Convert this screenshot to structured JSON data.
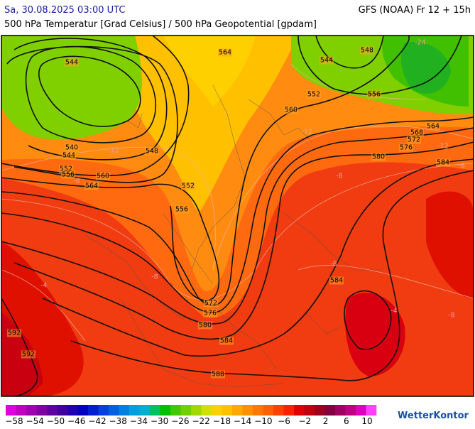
{
  "header": {
    "datetime": "Sa, 30.08.2025 03:00 UTC",
    "model": "GFS (NOAA) Fr 12 + 15h",
    "subtitle": "500 hPa Temperatur [Grad Celsius] / 500 hPa Geopotential [gpdam]"
  },
  "contour_labels": [
    "544",
    "564",
    "548",
    "544",
    "552",
    "556",
    "560",
    "564",
    "568",
    "572",
    "576",
    "580",
    "584",
    "540",
    "544",
    "548",
    "552",
    "556",
    "560",
    "564",
    "552",
    "556",
    "572",
    "576",
    "580",
    "584",
    "588",
    "584",
    "592",
    "592"
  ],
  "temperature_labels": [
    "-24",
    "-12",
    "-12",
    "-8",
    "-8",
    "-8",
    "-4",
    "-4",
    "-8",
    "-8",
    "-8",
    "-12"
  ],
  "colorbar": {
    "colors": [
      "#e000e0",
      "#c000c0",
      "#a000b0",
      "#8000a0",
      "#6000a0",
      "#4000a0",
      "#2000b0",
      "#0000c0",
      "#0020d0",
      "#0040e0",
      "#0060e0",
      "#0080e0",
      "#00a0e0",
      "#00b0d0",
      "#00c060",
      "#00c000",
      "#40c800",
      "#70d000",
      "#a0d800",
      "#d0e000",
      "#ffd000",
      "#ffc000",
      "#ffa800",
      "#ff9000",
      "#ff7800",
      "#ff6000",
      "#ff4000",
      "#ff2000",
      "#e00000",
      "#c00010",
      "#a00020",
      "#800040",
      "#a00060",
      "#c00080",
      "#e000c0",
      "#ff40ff"
    ],
    "labels": [
      "−58",
      "−54",
      "−50",
      "−46",
      "−42",
      "−38",
      "−34",
      "−30",
      "−26",
      "−22",
      "−18",
      "−14",
      "−10",
      "−6",
      "−2",
      "2",
      "6",
      "10"
    ]
  },
  "logo": "WetterKontor"
}
